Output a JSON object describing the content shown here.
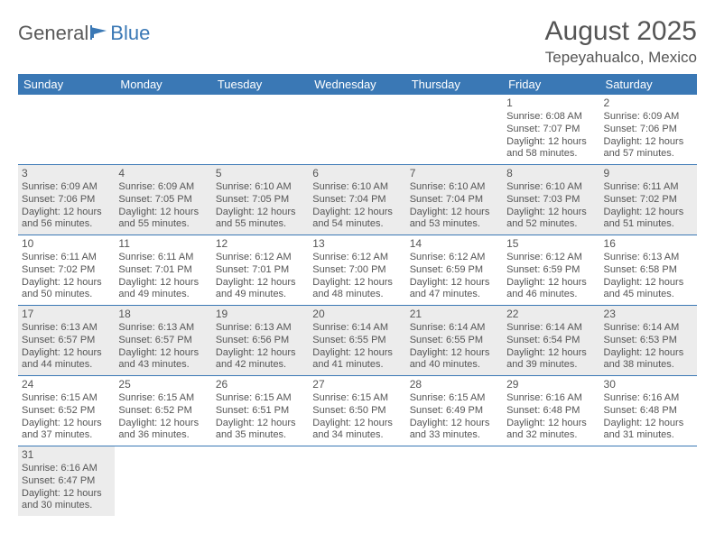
{
  "logo": {
    "part1": "General",
    "part2": "Blue"
  },
  "title": {
    "month": "August 2025",
    "location": "Tepeyahualco, Mexico"
  },
  "colors": {
    "header_bg": "#3a78b5",
    "header_text": "#ffffff",
    "shaded_bg": "#ececec",
    "border": "#3a78b5",
    "text": "#555555"
  },
  "weekdays": [
    "Sunday",
    "Monday",
    "Tuesday",
    "Wednesday",
    "Thursday",
    "Friday",
    "Saturday"
  ],
  "weeks": [
    {
      "shaded": false,
      "days": [
        null,
        null,
        null,
        null,
        null,
        {
          "n": "1",
          "sr": "Sunrise: 6:08 AM",
          "ss": "Sunset: 7:07 PM",
          "dl": "Daylight: 12 hours and 58 minutes."
        },
        {
          "n": "2",
          "sr": "Sunrise: 6:09 AM",
          "ss": "Sunset: 7:06 PM",
          "dl": "Daylight: 12 hours and 57 minutes."
        }
      ]
    },
    {
      "shaded": true,
      "days": [
        {
          "n": "3",
          "sr": "Sunrise: 6:09 AM",
          "ss": "Sunset: 7:06 PM",
          "dl": "Daylight: 12 hours and 56 minutes."
        },
        {
          "n": "4",
          "sr": "Sunrise: 6:09 AM",
          "ss": "Sunset: 7:05 PM",
          "dl": "Daylight: 12 hours and 55 minutes."
        },
        {
          "n": "5",
          "sr": "Sunrise: 6:10 AM",
          "ss": "Sunset: 7:05 PM",
          "dl": "Daylight: 12 hours and 55 minutes."
        },
        {
          "n": "6",
          "sr": "Sunrise: 6:10 AM",
          "ss": "Sunset: 7:04 PM",
          "dl": "Daylight: 12 hours and 54 minutes."
        },
        {
          "n": "7",
          "sr": "Sunrise: 6:10 AM",
          "ss": "Sunset: 7:04 PM",
          "dl": "Daylight: 12 hours and 53 minutes."
        },
        {
          "n": "8",
          "sr": "Sunrise: 6:10 AM",
          "ss": "Sunset: 7:03 PM",
          "dl": "Daylight: 12 hours and 52 minutes."
        },
        {
          "n": "9",
          "sr": "Sunrise: 6:11 AM",
          "ss": "Sunset: 7:02 PM",
          "dl": "Daylight: 12 hours and 51 minutes."
        }
      ]
    },
    {
      "shaded": false,
      "days": [
        {
          "n": "10",
          "sr": "Sunrise: 6:11 AM",
          "ss": "Sunset: 7:02 PM",
          "dl": "Daylight: 12 hours and 50 minutes."
        },
        {
          "n": "11",
          "sr": "Sunrise: 6:11 AM",
          "ss": "Sunset: 7:01 PM",
          "dl": "Daylight: 12 hours and 49 minutes."
        },
        {
          "n": "12",
          "sr": "Sunrise: 6:12 AM",
          "ss": "Sunset: 7:01 PM",
          "dl": "Daylight: 12 hours and 49 minutes."
        },
        {
          "n": "13",
          "sr": "Sunrise: 6:12 AM",
          "ss": "Sunset: 7:00 PM",
          "dl": "Daylight: 12 hours and 48 minutes."
        },
        {
          "n": "14",
          "sr": "Sunrise: 6:12 AM",
          "ss": "Sunset: 6:59 PM",
          "dl": "Daylight: 12 hours and 47 minutes."
        },
        {
          "n": "15",
          "sr": "Sunrise: 6:12 AM",
          "ss": "Sunset: 6:59 PM",
          "dl": "Daylight: 12 hours and 46 minutes."
        },
        {
          "n": "16",
          "sr": "Sunrise: 6:13 AM",
          "ss": "Sunset: 6:58 PM",
          "dl": "Daylight: 12 hours and 45 minutes."
        }
      ]
    },
    {
      "shaded": true,
      "days": [
        {
          "n": "17",
          "sr": "Sunrise: 6:13 AM",
          "ss": "Sunset: 6:57 PM",
          "dl": "Daylight: 12 hours and 44 minutes."
        },
        {
          "n": "18",
          "sr": "Sunrise: 6:13 AM",
          "ss": "Sunset: 6:57 PM",
          "dl": "Daylight: 12 hours and 43 minutes."
        },
        {
          "n": "19",
          "sr": "Sunrise: 6:13 AM",
          "ss": "Sunset: 6:56 PM",
          "dl": "Daylight: 12 hours and 42 minutes."
        },
        {
          "n": "20",
          "sr": "Sunrise: 6:14 AM",
          "ss": "Sunset: 6:55 PM",
          "dl": "Daylight: 12 hours and 41 minutes."
        },
        {
          "n": "21",
          "sr": "Sunrise: 6:14 AM",
          "ss": "Sunset: 6:55 PM",
          "dl": "Daylight: 12 hours and 40 minutes."
        },
        {
          "n": "22",
          "sr": "Sunrise: 6:14 AM",
          "ss": "Sunset: 6:54 PM",
          "dl": "Daylight: 12 hours and 39 minutes."
        },
        {
          "n": "23",
          "sr": "Sunrise: 6:14 AM",
          "ss": "Sunset: 6:53 PM",
          "dl": "Daylight: 12 hours and 38 minutes."
        }
      ]
    },
    {
      "shaded": false,
      "days": [
        {
          "n": "24",
          "sr": "Sunrise: 6:15 AM",
          "ss": "Sunset: 6:52 PM",
          "dl": "Daylight: 12 hours and 37 minutes."
        },
        {
          "n": "25",
          "sr": "Sunrise: 6:15 AM",
          "ss": "Sunset: 6:52 PM",
          "dl": "Daylight: 12 hours and 36 minutes."
        },
        {
          "n": "26",
          "sr": "Sunrise: 6:15 AM",
          "ss": "Sunset: 6:51 PM",
          "dl": "Daylight: 12 hours and 35 minutes."
        },
        {
          "n": "27",
          "sr": "Sunrise: 6:15 AM",
          "ss": "Sunset: 6:50 PM",
          "dl": "Daylight: 12 hours and 34 minutes."
        },
        {
          "n": "28",
          "sr": "Sunrise: 6:15 AM",
          "ss": "Sunset: 6:49 PM",
          "dl": "Daylight: 12 hours and 33 minutes."
        },
        {
          "n": "29",
          "sr": "Sunrise: 6:16 AM",
          "ss": "Sunset: 6:48 PM",
          "dl": "Daylight: 12 hours and 32 minutes."
        },
        {
          "n": "30",
          "sr": "Sunrise: 6:16 AM",
          "ss": "Sunset: 6:48 PM",
          "dl": "Daylight: 12 hours and 31 minutes."
        }
      ]
    },
    {
      "shaded": true,
      "days": [
        {
          "n": "31",
          "sr": "Sunrise: 6:16 AM",
          "ss": "Sunset: 6:47 PM",
          "dl": "Daylight: 12 hours and 30 minutes."
        },
        null,
        null,
        null,
        null,
        null,
        null
      ]
    }
  ]
}
